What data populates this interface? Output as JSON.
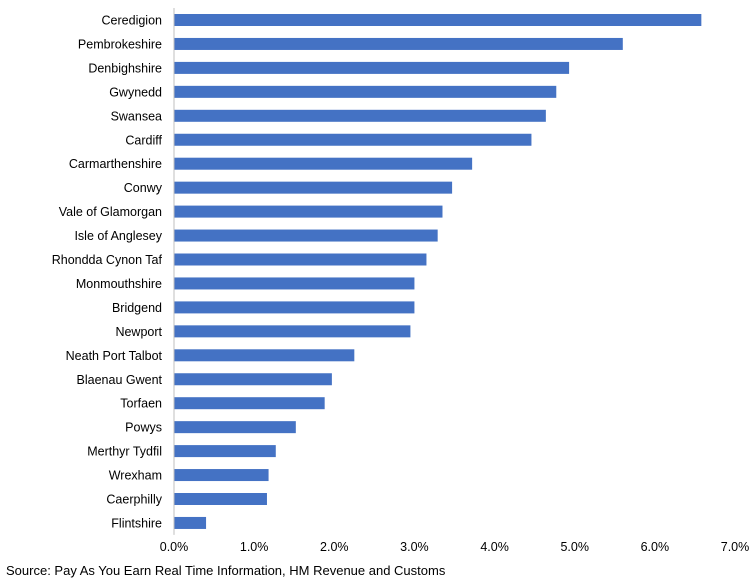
{
  "chart_data": {
    "type": "bar",
    "orientation": "horizontal",
    "categories": [
      "Ceredigion",
      "Pembrokeshire",
      "Denbighshire",
      "Gwynedd",
      "Swansea",
      "Cardiff",
      "Carmarthenshire",
      "Conwy",
      "Vale of Glamorgan",
      "Isle of Anglesey",
      "Rhondda Cynon Taf",
      "Monmouthshire",
      "Bridgend",
      "Newport",
      "Neath Port Talbot",
      "Blaenau Gwent",
      "Torfaen",
      "Powys",
      "Merthyr Tydfil",
      "Wrexham",
      "Caerphilly",
      "Flintshire"
    ],
    "values": [
      6.58,
      5.6,
      4.93,
      4.77,
      4.64,
      4.46,
      3.72,
      3.47,
      3.35,
      3.29,
      3.15,
      3.0,
      3.0,
      2.95,
      2.25,
      1.97,
      1.88,
      1.52,
      1.27,
      1.18,
      1.16,
      0.4
    ],
    "xlim": [
      0,
      7
    ],
    "x_ticks": [
      "0.0%",
      "1.0%",
      "2.0%",
      "3.0%",
      "4.0%",
      "5.0%",
      "6.0%",
      "7.0%"
    ],
    "bar_color": "#4472C4",
    "grid": false,
    "title": "",
    "xlabel": "",
    "ylabel": ""
  },
  "source": "Source: Pay As You Earn Real Time Information, HM Revenue and Customs"
}
